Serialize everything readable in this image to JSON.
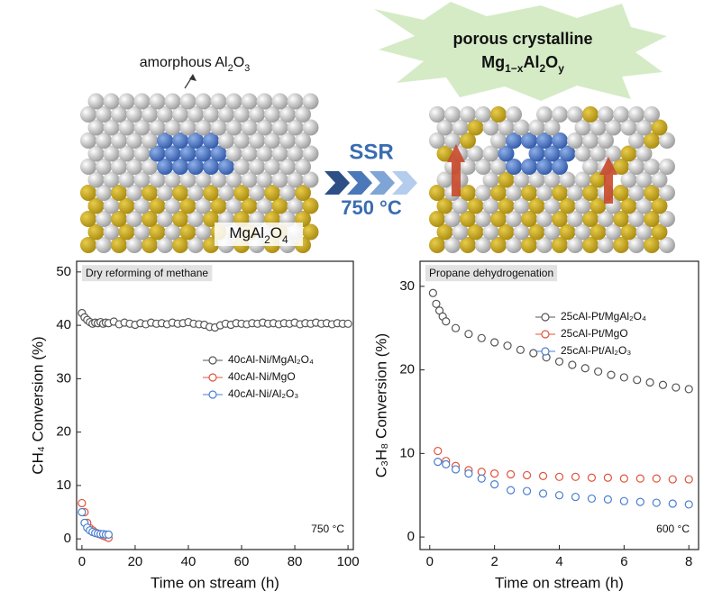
{
  "schematic": {
    "amorphous": [
      "amorphous Al",
      "2",
      "O",
      "3"
    ],
    "spinel": [
      "MgAl",
      "2",
      "O",
      "4"
    ],
    "process": "SSR",
    "temperature": "750 °C",
    "product_line1": "porous crystalline",
    "product_line2": [
      "Mg",
      "1−x",
      "Al",
      "2",
      "O",
      "y"
    ]
  },
  "chart_data": [
    {
      "type": "scatter",
      "annotation": "Dry reforming of methane",
      "temperature_note": "750 °C",
      "x_label": "Time on stream (h)",
      "y_label": "CH₄ Conversion (%)",
      "xlim": [
        -2,
        102
      ],
      "xticks": [
        0,
        20,
        40,
        60,
        80,
        100
      ],
      "ylim": [
        -2,
        52
      ],
      "yticks": [
        0,
        10,
        20,
        30,
        40,
        50
      ],
      "legend": "right",
      "series": [
        {
          "name": "40cAl-Ni/MgAl₂O₄",
          "color": "#555555",
          "x": [
            0,
            1,
            2,
            3,
            4,
            5,
            6,
            7,
            8,
            9,
            10,
            12,
            14,
            16,
            18,
            20,
            22,
            24,
            26,
            28,
            30,
            32,
            34,
            36,
            38,
            40,
            42,
            44,
            46,
            48,
            50,
            52,
            54,
            56,
            58,
            60,
            62,
            64,
            66,
            68,
            70,
            72,
            74,
            76,
            78,
            80,
            82,
            84,
            86,
            88,
            90,
            92,
            94,
            96,
            98,
            100
          ],
          "values": [
            42.3,
            41.5,
            41,
            40.6,
            40.3,
            40.5,
            40.4,
            40.6,
            40.3,
            40.5,
            40.4,
            40.7,
            40.2,
            40.5,
            40.3,
            40.1,
            40.4,
            40.2,
            40.5,
            40.3,
            40.4,
            40.2,
            40.5,
            40.3,
            40.4,
            40.6,
            40.3,
            40.2,
            40.1,
            39.7,
            39.6,
            40,
            40.3,
            40.1,
            40.4,
            40.3,
            40.2,
            40.4,
            40.3,
            40.5,
            40.3,
            40.4,
            40.2,
            40.4,
            40.3,
            40.5,
            40.2,
            40.4,
            40.3,
            40.5,
            40.3,
            40.4,
            40.2,
            40.4,
            40.3,
            40.3
          ]
        },
        {
          "name": "40cAl-Ni/MgO",
          "color": "#e0533c",
          "x": [
            0,
            1,
            2,
            3,
            4,
            5,
            6,
            7,
            8,
            9,
            10
          ],
          "values": [
            6.7,
            5,
            3,
            2,
            1.6,
            1.2,
            1,
            0.8,
            0.6,
            0.4,
            0.2
          ]
        },
        {
          "name": "40cAl-Ni/Al₂O₃",
          "color": "#4a7fd0",
          "x": [
            0,
            1,
            2,
            3,
            4,
            5,
            6,
            7,
            8,
            9,
            10
          ],
          "values": [
            5,
            3,
            2.1,
            1.6,
            1.3,
            1.1,
            1,
            0.9,
            0.9,
            0.8,
            0.8
          ]
        }
      ]
    },
    {
      "type": "scatter",
      "annotation": "Propane dehydrogenation",
      "temperature_note": "600 °C",
      "x_label": "Time on stream (h)",
      "y_label": "C₃H₈ Conversion (%)",
      "xlim": [
        -0.3,
        8.3
      ],
      "xticks": [
        0,
        2,
        4,
        6,
        8
      ],
      "ylim": [
        -1.5,
        33
      ],
      "yticks": [
        0,
        10,
        20,
        30
      ],
      "legend": "upper right",
      "series": [
        {
          "name": "25cAl-Pt/MgAl₂O₄",
          "color": "#555555",
          "x": [
            0.1,
            0.2,
            0.3,
            0.4,
            0.5,
            0.8,
            1.2,
            1.6,
            2,
            2.4,
            2.8,
            3.2,
            3.6,
            4,
            4.4,
            4.8,
            5.2,
            5.6,
            6,
            6.4,
            6.8,
            7.2,
            7.6,
            8
          ],
          "values": [
            29.2,
            27.9,
            27.1,
            26.4,
            25.8,
            25,
            24.3,
            23.8,
            23.3,
            22.9,
            22.4,
            22,
            21.5,
            21,
            20.6,
            20.2,
            19.8,
            19.4,
            19.1,
            18.8,
            18.5,
            18.2,
            17.9,
            17.7
          ]
        },
        {
          "name": "25cAl-Pt/MgO",
          "color": "#e0533c",
          "x": [
            0.25,
            0.5,
            0.8,
            1.2,
            1.6,
            2,
            2.5,
            3,
            3.5,
            4,
            4.5,
            5,
            5.5,
            6,
            6.5,
            7,
            7.5,
            8
          ],
          "values": [
            10.3,
            9.1,
            8.5,
            8,
            7.8,
            7.6,
            7.5,
            7.4,
            7.3,
            7.2,
            7.2,
            7.1,
            7.1,
            7,
            7,
            7,
            6.9,
            6.9
          ]
        },
        {
          "name": "25cAl-Pt/Al₂O₃",
          "color": "#4a7fd0",
          "x": [
            0.25,
            0.5,
            0.8,
            1.2,
            1.6,
            2,
            2.5,
            3,
            3.5,
            4,
            4.5,
            5,
            5.5,
            6,
            6.5,
            7,
            7.5,
            8
          ],
          "values": [
            9,
            8.7,
            8.1,
            7.6,
            7,
            6.3,
            5.6,
            5.5,
            5.2,
            5,
            4.8,
            4.6,
            4.5,
            4.3,
            4.2,
            4.1,
            4,
            3.9
          ]
        }
      ]
    }
  ]
}
